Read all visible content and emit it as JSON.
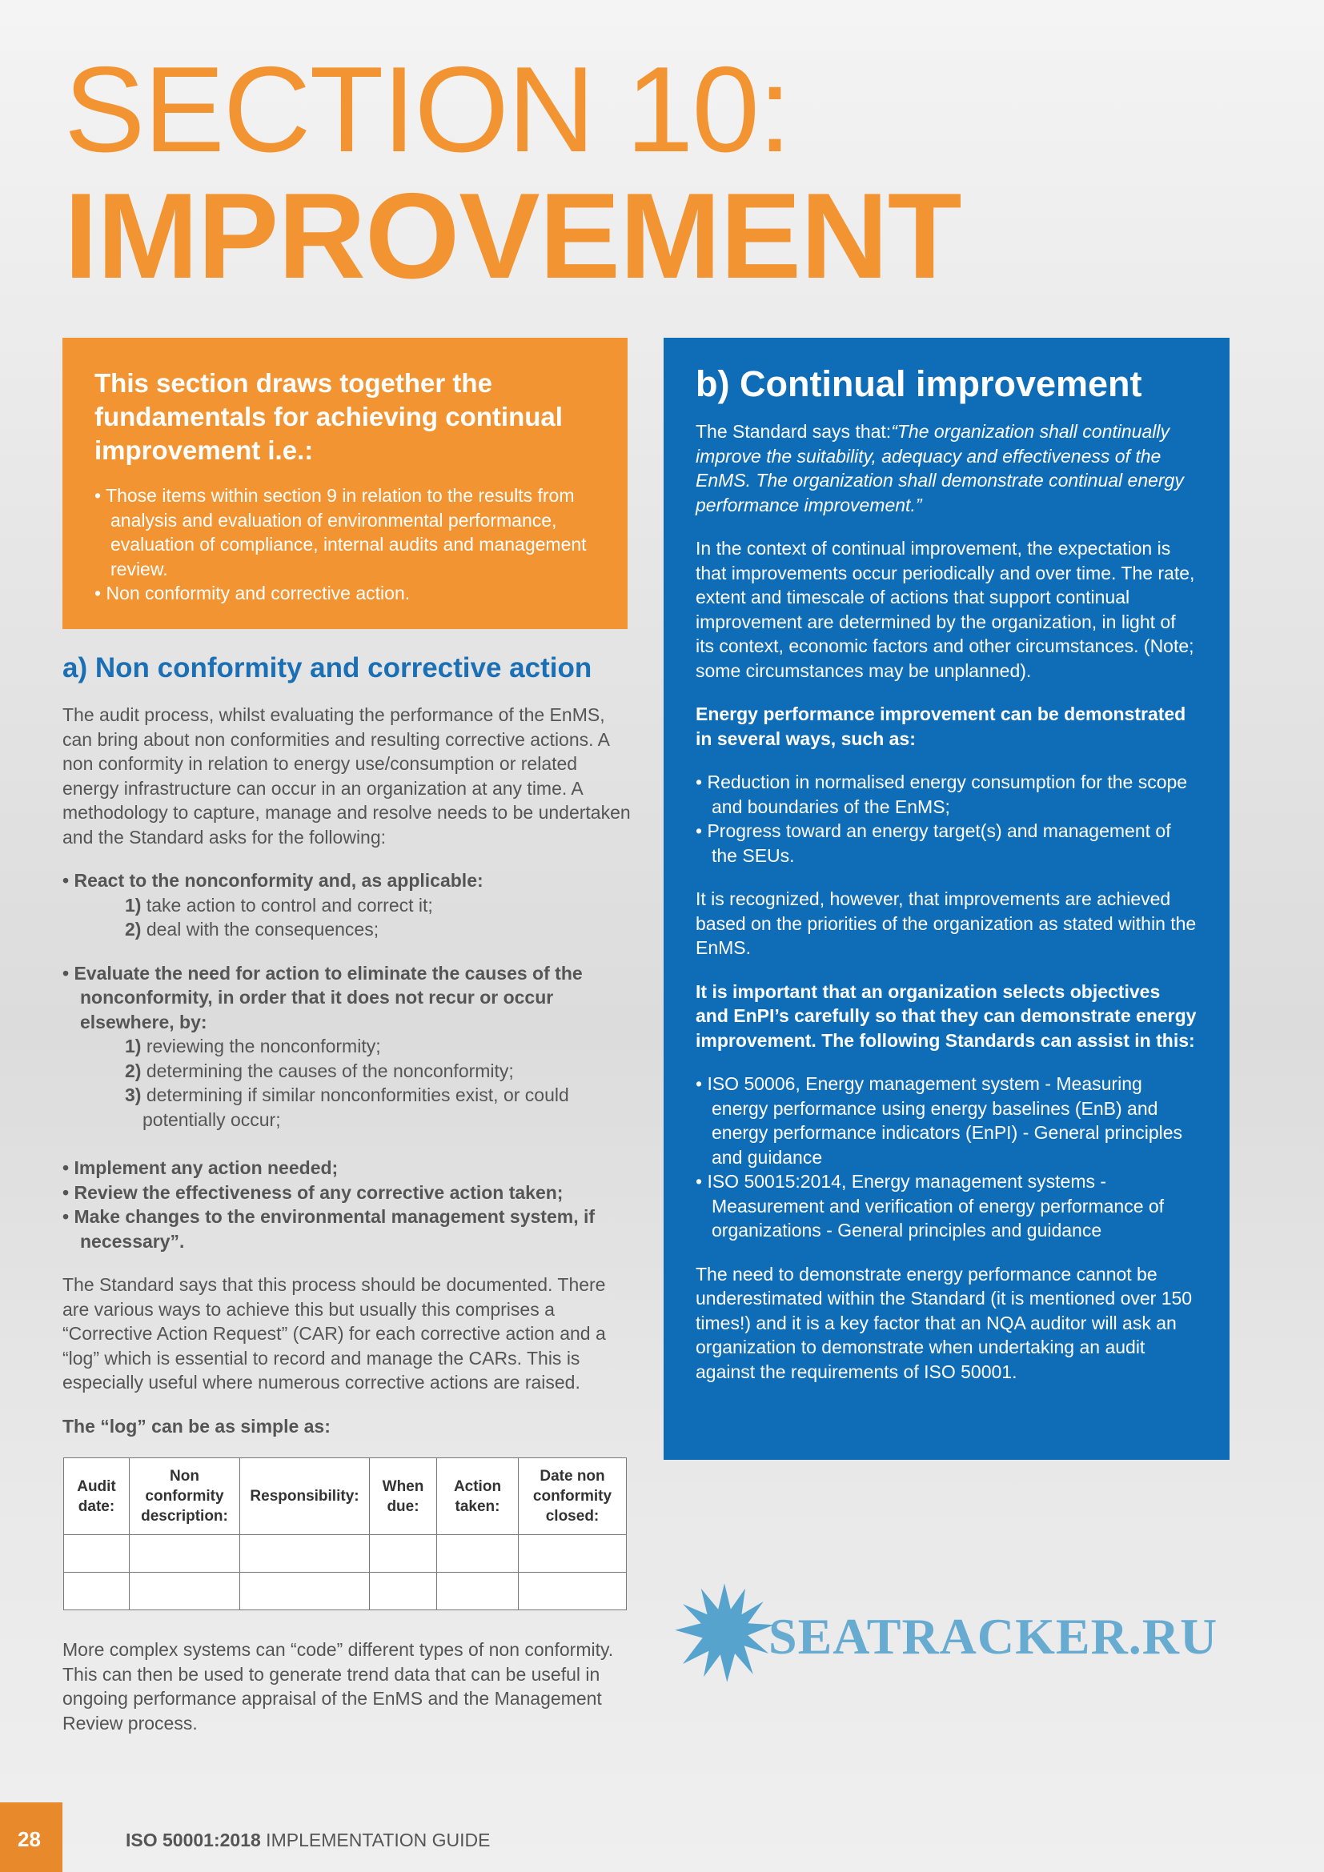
{
  "title": {
    "line1": "SECTION 10:",
    "line2": "IMPROVEMENT"
  },
  "intro_box": {
    "heading": "This section draws together the fundamentals for achieving continual improvement i.e.:",
    "bullets": [
      "Those items within section 9 in relation to the results from analysis and evaluation of environmental performance, evaluation of compliance, internal audits and management review.",
      "Non conformity and corrective action."
    ]
  },
  "left": {
    "heading": "a) Non conformity and corrective action",
    "para1": "The audit process, whilst evaluating the performance of the EnMS, can bring about non conformities and resulting corrective actions. A non conformity in relation to energy use/consumption or related energy infrastructure can occur in an organization at any time. A methodology to capture, manage and resolve needs to be undertaken and the Standard asks for the following:",
    "react": {
      "label": "React to the nonconformity and, as applicable:",
      "items": [
        {
          "n": "1)",
          "t": "take action to control and correct it;"
        },
        {
          "n": "2)",
          "t": "deal with the consequences;"
        }
      ]
    },
    "evaluate": {
      "label": "Evaluate the need for action to eliminate the causes of the nonconformity, in order that it does not recur or occur elsewhere, by:",
      "items": [
        {
          "n": "1)",
          "t": "reviewing the nonconformity;"
        },
        {
          "n": "2)",
          "t": "determining the causes of the nonconformity;"
        },
        {
          "n": "3)",
          "t": "determining if similar nonconformities exist, or could potentially occur;"
        }
      ]
    },
    "more": [
      "Implement any action needed;",
      "Review the effectiveness of any corrective action taken;",
      "Make changes to the environmental management system, if necessary”."
    ],
    "para2": "The Standard says that this process should be documented. There are various ways to achieve this but usually this comprises a “Corrective Action Request” (CAR) for each corrective action and a “log” which is essential to record and manage the CARs. This is especially useful where numerous corrective actions are raised.",
    "log_label": "The “log” can be as simple as:",
    "table_headers": [
      "Audit date:",
      "Non conformity description:",
      "Responsibility:",
      "When due:",
      "Action taken:",
      "Date non conformity closed:"
    ],
    "para3": "More complex systems can “code” different types of non conformity. This can then be used to generate trend data that can be useful in ongoing performance appraisal of the EnMS and the Management Review process."
  },
  "right": {
    "heading": "b) Continual improvement",
    "standard_prefix": "The Standard says that:",
    "standard_quote": "“The organization shall continually improve the suitability, adequacy and effectiveness of the EnMS. The organization shall demonstrate continual energy performance improvement.”",
    "para1": "In the context of continual improvement, the expectation is that improvements occur periodically and over time. The rate, extent and timescale of actions that support continual improvement are determined by the organization, in light of its context, economic factors and other circumstances. (Note; some circumstances may be unplanned).",
    "bold1": "Energy performance improvement can be demonstrated in several ways, such as:",
    "bullets1": [
      "Reduction in normalised energy consumption for the scope and boundaries of the EnMS;",
      "Progress toward an energy target(s) and management of the SEUs."
    ],
    "para2": "It is recognized, however, that improvements are achieved based on the priorities of the organization as stated within the EnMS.",
    "bold2": "It is important that an organization selects objectives and EnPI’s carefully so that they can demonstrate energy improvement. The following Standards can assist in this:",
    "bullets2": [
      "ISO 50006, Energy management system - Measuring energy performance using energy baselines (EnB) and energy performance indicators (EnPI) - General principles and guidance",
      "ISO 50015:2014, Energy management systems - Measurement and verification of energy performance of organizations - General principles and guidance"
    ],
    "para3": "The need to demonstrate energy performance cannot be underestimated within the Standard (it is mentioned over 150 times!) and it is a key factor that an NQA auditor will ask an organization to demonstrate when undertaking an audit against the requirements of ISO 50001."
  },
  "footer": {
    "page": "28",
    "guide_bold": "ISO 50001:2018",
    "guide_rest": " IMPLEMENTATION GUIDE"
  },
  "watermark": "SEATRACKER.RU",
  "colors": {
    "orange": "#f39433",
    "blue": "#0f6db8",
    "heading_blue": "#1a6fb5"
  }
}
